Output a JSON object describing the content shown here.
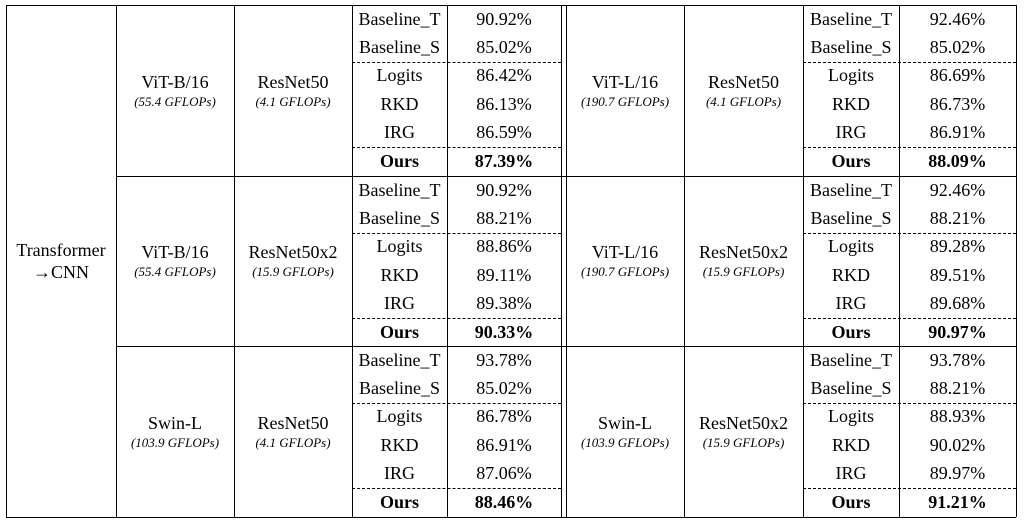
{
  "category": {
    "line1": "Transformer",
    "line2": "→CNN"
  },
  "blocks": [
    {
      "left": {
        "teacher": "ViT-B/16",
        "teacher_flops": "(55.4 GFLOPs)",
        "student": "ResNet50",
        "student_flops": "(4.1 GFLOPs)",
        "rows": [
          [
            "Baseline_T",
            "90.92%"
          ],
          [
            "Baseline_S",
            "85.02%"
          ],
          [
            "Logits",
            "86.42%"
          ],
          [
            "RKD",
            "86.13%"
          ],
          [
            "IRG",
            "86.59%"
          ],
          [
            "Ours",
            "87.39%"
          ]
        ]
      },
      "right": {
        "teacher": "ViT-L/16",
        "teacher_flops": "(190.7 GFLOPs)",
        "student": "ResNet50",
        "student_flops": "(4.1 GFLOPs)",
        "rows": [
          [
            "Baseline_T",
            "92.46%"
          ],
          [
            "Baseline_S",
            "85.02%"
          ],
          [
            "Logits",
            "86.69%"
          ],
          [
            "RKD",
            "86.73%"
          ],
          [
            "IRG",
            "86.91%"
          ],
          [
            "Ours",
            "88.09%"
          ]
        ]
      }
    },
    {
      "left": {
        "teacher": "ViT-B/16",
        "teacher_flops": "(55.4 GFLOPs)",
        "student": "ResNet50x2",
        "student_flops": "(15.9 GFLOPs)",
        "rows": [
          [
            "Baseline_T",
            "90.92%"
          ],
          [
            "Baseline_S",
            "88.21%"
          ],
          [
            "Logits",
            "88.86%"
          ],
          [
            "RKD",
            "89.11%"
          ],
          [
            "IRG",
            "89.38%"
          ],
          [
            "Ours",
            "90.33%"
          ]
        ]
      },
      "right": {
        "teacher": "ViT-L/16",
        "teacher_flops": "(190.7 GFLOPs)",
        "student": "ResNet50x2",
        "student_flops": "(15.9 GFLOPs)",
        "rows": [
          [
            "Baseline_T",
            "92.46%"
          ],
          [
            "Baseline_S",
            "88.21%"
          ],
          [
            "Logits",
            "89.28%"
          ],
          [
            "RKD",
            "89.51%"
          ],
          [
            "IRG",
            "89.68%"
          ],
          [
            "Ours",
            "90.97%"
          ]
        ]
      }
    },
    {
      "left": {
        "teacher": "Swin-L",
        "teacher_flops": "(103.9 GFLOPs)",
        "student": "ResNet50",
        "student_flops": "(4.1 GFLOPs)",
        "rows": [
          [
            "Baseline_T",
            "93.78%"
          ],
          [
            "Baseline_S",
            "85.02%"
          ],
          [
            "Logits",
            "86.78%"
          ],
          [
            "RKD",
            "86.91%"
          ],
          [
            "IRG",
            "87.06%"
          ],
          [
            "Ours",
            "88.46%"
          ]
        ]
      },
      "right": {
        "teacher": "Swin-L",
        "teacher_flops": "(103.9 GFLOPs)",
        "student": "ResNet50x2",
        "student_flops": "(15.9 GFLOPs)",
        "rows": [
          [
            "Baseline_T",
            "93.78%"
          ],
          [
            "Baseline_S",
            "88.21%"
          ],
          [
            "Logits",
            "88.93%"
          ],
          [
            "RKD",
            "90.02%"
          ],
          [
            "IRG",
            "89.97%"
          ],
          [
            "Ours",
            "91.21%"
          ]
        ]
      }
    }
  ]
}
